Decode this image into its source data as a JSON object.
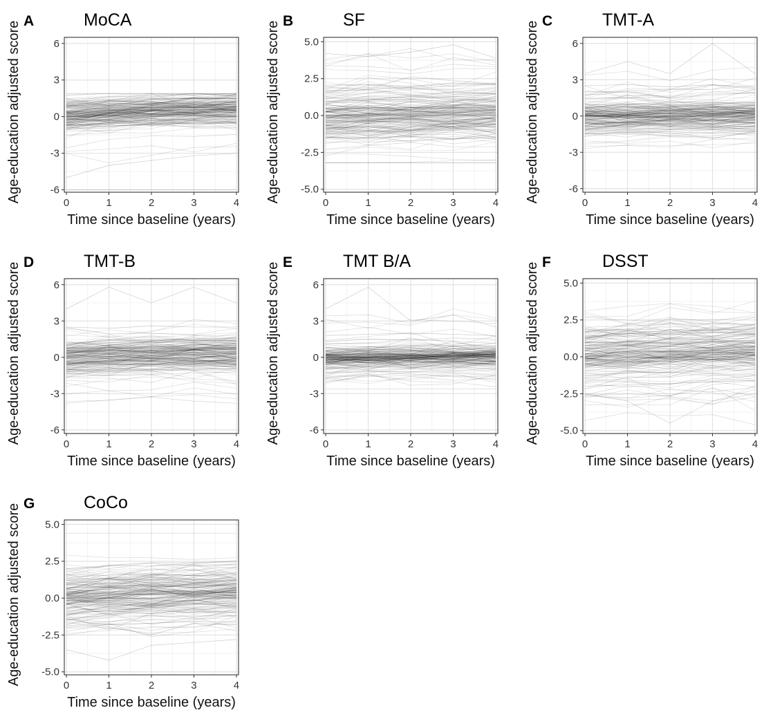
{
  "figure": {
    "y_axis_label": "Age-education adjusted score",
    "x_axis_label": "Time since baseline (years)"
  },
  "chart_data": [
    {
      "type": "line",
      "letter": "A",
      "title": "MoCA",
      "xlabel": "Time since baseline (years)",
      "ylabel": "Age-education adjusted score",
      "x_ticks": [
        0,
        1,
        2,
        3,
        4
      ],
      "y_ticks": [
        -6,
        -3,
        0,
        3,
        6
      ],
      "y_tick_labels": [
        "-6",
        "-3",
        "0",
        "3",
        "6"
      ],
      "xlim": [
        -0.05,
        4.05
      ],
      "ylim": [
        -6.2,
        6.5
      ],
      "grid": true,
      "series": [
        {
          "x": [
            0,
            1,
            2,
            3,
            4
          ],
          "y": [
            0.0,
            0.3,
            0.5,
            0.6,
            0.7
          ]
        },
        {
          "x": [
            0,
            1,
            2,
            3,
            4
          ],
          "y": [
            1.2,
            1.3,
            1.4,
            1.5,
            1.5
          ]
        },
        {
          "x": [
            0,
            1,
            2,
            3,
            4
          ],
          "y": [
            -1.0,
            -0.8,
            -0.6,
            -0.5,
            -0.4
          ]
        },
        {
          "x": [
            0,
            1,
            2,
            3,
            4
          ],
          "y": [
            -5.0,
            -4.0,
            -3.6,
            -3.2,
            -3.0
          ]
        },
        {
          "x": [
            0,
            1,
            2,
            3,
            4
          ],
          "y": [
            -6.0,
            -6.0,
            -6.0,
            -6.0,
            -6.0
          ]
        }
      ]
    },
    {
      "type": "line",
      "letter": "B",
      "title": "SF",
      "xlabel": "Time since baseline (years)",
      "ylabel": "Age-education adjusted score",
      "x_ticks": [
        0,
        1,
        2,
        3,
        4
      ],
      "y_ticks": [
        -5,
        -2.5,
        0,
        2.5,
        5
      ],
      "y_tick_labels": [
        "-5.0",
        "-2.5",
        "0.0",
        "2.5",
        "5.0"
      ],
      "xlim": [
        -0.05,
        4.05
      ],
      "ylim": [
        -5.2,
        5.3
      ],
      "grid": true,
      "series": [
        {
          "x": [
            0,
            1,
            2,
            3,
            4
          ],
          "y": [
            0.0,
            0.1,
            0.1,
            0.2,
            0.2
          ]
        },
        {
          "x": [
            0,
            1,
            2,
            3,
            4
          ],
          "y": [
            2.0,
            2.1,
            2.0,
            2.2,
            2.1
          ]
        },
        {
          "x": [
            0,
            1,
            2,
            3,
            4
          ],
          "y": [
            -1.8,
            -1.8,
            -1.7,
            -1.6,
            -1.5
          ]
        },
        {
          "x": [
            0,
            1,
            2,
            3,
            4
          ],
          "y": [
            4.2,
            4.0,
            4.3,
            4.8,
            3.9
          ]
        }
      ]
    },
    {
      "type": "line",
      "letter": "C",
      "title": "TMT-A",
      "xlabel": "Time since baseline (years)",
      "ylabel": "Age-education adjusted score",
      "x_ticks": [
        0,
        1,
        2,
        3,
        4
      ],
      "y_ticks": [
        -6,
        -3,
        0,
        3,
        6
      ],
      "y_tick_labels": [
        "-6",
        "-3",
        "0",
        "3",
        "6"
      ],
      "xlim": [
        -0.05,
        4.05
      ],
      "ylim": [
        -6.3,
        6.5
      ],
      "grid": true,
      "series": [
        {
          "x": [
            0,
            1,
            2,
            3,
            4
          ],
          "y": [
            0.0,
            0.1,
            0.2,
            0.2,
            0.2
          ]
        },
        {
          "x": [
            0,
            1,
            2,
            3,
            4
          ],
          "y": [
            2.5,
            2.6,
            2.4,
            2.6,
            2.3
          ]
        },
        {
          "x": [
            0,
            1,
            2,
            3,
            4
          ],
          "y": [
            -1.5,
            -1.4,
            -1.3,
            -1.4,
            -1.2
          ]
        },
        {
          "x": [
            0,
            1,
            2,
            3,
            4
          ],
          "y": [
            3.5,
            4.5,
            3.5,
            6.0,
            3.5
          ]
        }
      ]
    },
    {
      "type": "line",
      "letter": "D",
      "title": "TMT-B",
      "xlabel": "Time since baseline (years)",
      "ylabel": "Age-education adjusted score",
      "x_ticks": [
        0,
        1,
        2,
        3,
        4
      ],
      "y_ticks": [
        -6,
        -3,
        0,
        3,
        6
      ],
      "y_tick_labels": [
        "-6",
        "-3",
        "0",
        "3",
        "6"
      ],
      "xlim": [
        -0.05,
        4.05
      ],
      "ylim": [
        -6.3,
        6.5
      ],
      "grid": true,
      "series": [
        {
          "x": [
            0,
            1,
            2,
            3,
            4
          ],
          "y": [
            0.0,
            0.1,
            0.2,
            0.3,
            0.3
          ]
        },
        {
          "x": [
            0,
            1,
            2,
            3,
            4
          ],
          "y": [
            2.5,
            2.4,
            2.6,
            2.5,
            2.5
          ]
        },
        {
          "x": [
            0,
            1,
            2,
            3,
            4
          ],
          "y": [
            -1.6,
            -1.5,
            -1.4,
            -1.3,
            -1.2
          ]
        },
        {
          "x": [
            0,
            1,
            2,
            3,
            4
          ],
          "y": [
            4.0,
            5.8,
            4.5,
            5.8,
            4.5
          ]
        }
      ]
    },
    {
      "type": "line",
      "letter": "E",
      "title": "TMT B/A",
      "xlabel": "Time since baseline (years)",
      "ylabel": "Age-education adjusted score",
      "x_ticks": [
        0,
        1,
        2,
        3,
        4
      ],
      "y_ticks": [
        -6,
        -3,
        0,
        3,
        6
      ],
      "y_tick_labels": [
        "-6",
        "-3",
        "0",
        "3",
        "6"
      ],
      "xlim": [
        -0.05,
        4.05
      ],
      "ylim": [
        -6.3,
        6.5
      ],
      "grid": true,
      "series": [
        {
          "x": [
            0,
            1,
            2,
            3,
            4
          ],
          "y": [
            0.0,
            0.0,
            0.1,
            0.1,
            0.1
          ]
        },
        {
          "x": [
            0,
            1,
            2,
            3,
            4
          ],
          "y": [
            1.8,
            1.9,
            2.0,
            1.9,
            1.8
          ]
        },
        {
          "x": [
            0,
            1,
            2,
            3,
            4
          ],
          "y": [
            -1.3,
            -1.2,
            -1.2,
            -1.1,
            -1.1
          ]
        },
        {
          "x": [
            0,
            1,
            2,
            3,
            4
          ],
          "y": [
            4.0,
            5.8,
            3.0,
            3.5,
            2.5
          ]
        }
      ]
    },
    {
      "type": "line",
      "letter": "F",
      "title": "DSST",
      "xlabel": "Time since baseline (years)",
      "ylabel": "Age-education adjusted score",
      "x_ticks": [
        0,
        1,
        2,
        3,
        4
      ],
      "y_ticks": [
        -5,
        -2.5,
        0,
        2.5,
        5
      ],
      "y_tick_labels": [
        "-5.0",
        "-2.5",
        "0.0",
        "2.5",
        "5.0"
      ],
      "xlim": [
        -0.05,
        4.05
      ],
      "ylim": [
        -5.2,
        5.3
      ],
      "grid": true,
      "series": [
        {
          "x": [
            0,
            1,
            2,
            3,
            4
          ],
          "y": [
            0.0,
            0.1,
            0.2,
            0.3,
            0.3
          ]
        },
        {
          "x": [
            0,
            1,
            2,
            3,
            4
          ],
          "y": [
            2.0,
            2.1,
            2.2,
            2.3,
            2.2
          ]
        },
        {
          "x": [
            0,
            1,
            2,
            3,
            4
          ],
          "y": [
            -2.0,
            -1.9,
            -1.8,
            -1.7,
            -1.6
          ]
        },
        {
          "x": [
            0,
            1,
            2,
            3,
            4
          ],
          "y": [
            -2.5,
            -3.0,
            -4.5,
            -3.0,
            -2.5
          ]
        }
      ]
    },
    {
      "type": "line",
      "letter": "G",
      "title": "CoCo",
      "xlabel": "Time since baseline (years)",
      "ylabel": "Age-education adjusted score",
      "x_ticks": [
        0,
        1,
        2,
        3,
        4
      ],
      "y_ticks": [
        -5,
        -2.5,
        0,
        2.5,
        5
      ],
      "y_tick_labels": [
        "-5.0",
        "-2.5",
        "0.0",
        "2.5",
        "5.0"
      ],
      "xlim": [
        -0.05,
        4.05
      ],
      "ylim": [
        -5.2,
        5.3
      ],
      "grid": true,
      "series": [
        {
          "x": [
            0,
            1,
            2,
            3,
            4
          ],
          "y": [
            0.0,
            0.2,
            0.3,
            0.4,
            0.4
          ]
        },
        {
          "x": [
            0,
            1,
            2,
            3,
            4
          ],
          "y": [
            2.0,
            2.2,
            2.4,
            2.4,
            2.5
          ]
        },
        {
          "x": [
            0,
            1,
            2,
            3,
            4
          ],
          "y": [
            -2.0,
            -1.8,
            -1.7,
            -1.6,
            -1.6
          ]
        },
        {
          "x": [
            0,
            1,
            2,
            3,
            4
          ],
          "y": [
            -3.5,
            -4.2,
            -3.2,
            -3.0,
            -2.8
          ]
        }
      ]
    }
  ],
  "colors": {
    "trajectory": "#000000",
    "grid_major": "#e2e2e2",
    "grid_minor": "#efefef",
    "panel_border": "#222222",
    "text": "#111111"
  }
}
